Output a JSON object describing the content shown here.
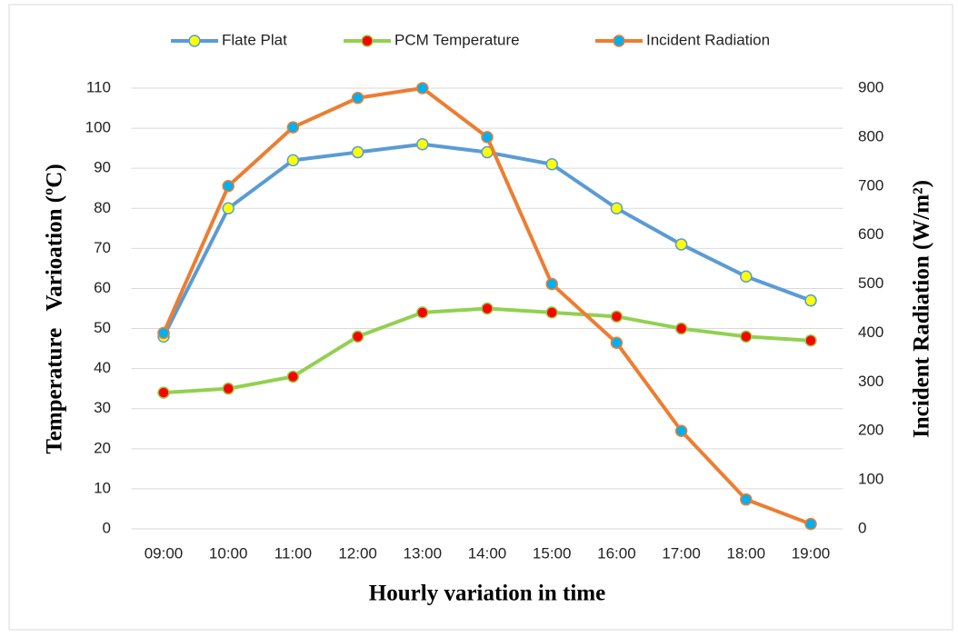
{
  "chart_data": {
    "type": "line",
    "categories": [
      "09:00",
      "10:00",
      "11:00",
      "12:00",
      "13:00",
      "14:00",
      "15:00",
      "16:00",
      "17:00",
      "18:00",
      "19:00"
    ],
    "series": [
      {
        "name": "Flate Plat",
        "color": "#5b9bd5",
        "marker_color": "#ffff00",
        "values": [
          48,
          80,
          92,
          94,
          96,
          94,
          91,
          80,
          71,
          63,
          57
        ]
      },
      {
        "name": "PCM Temperature",
        "color": "#92d050",
        "marker_color": "#ff0000",
        "values": [
          34,
          35,
          38,
          48,
          54,
          55,
          54,
          53,
          50,
          48,
          47
        ]
      },
      {
        "name": "Incident Radiation",
        "color": "#ed7d31",
        "marker_color": "#00b0f0",
        "axis": "y2",
        "values": [
          400,
          700,
          820,
          880,
          900,
          800,
          500,
          380,
          200,
          60,
          10
        ]
      }
    ],
    "xlabel": "Hourly variation in time",
    "ylabel": "Temperature   Varioation (ºC)",
    "y2label": "Incident Radiation (W/m²)",
    "ylim": [
      0,
      110
    ],
    "yticks": [
      0,
      10,
      20,
      30,
      40,
      50,
      60,
      70,
      80,
      90,
      100,
      110
    ],
    "y2lim": [
      0,
      900
    ],
    "y2ticks": [
      0,
      100,
      200,
      300,
      400,
      500,
      600,
      700,
      800,
      900
    ],
    "grid": true,
    "legend": "top"
  }
}
